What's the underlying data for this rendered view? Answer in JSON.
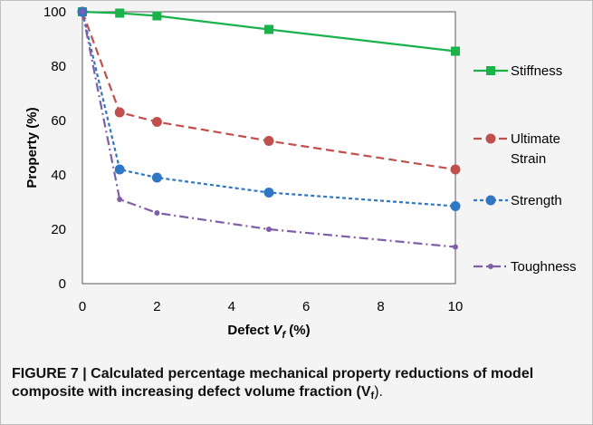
{
  "chart_data": {
    "type": "line",
    "x": [
      0,
      1,
      2,
      5,
      10
    ],
    "xticks": [
      "0",
      "2",
      "4",
      "6",
      "8",
      "10"
    ],
    "yticks": [
      "0",
      "20",
      "40",
      "60",
      "80",
      "100"
    ],
    "ylim": [
      0,
      100
    ],
    "xlabel": "Defect ",
    "xlabel_var": "V",
    "xlabel_sub": "f",
    "xlabel_unit": " (%)",
    "ylabel": "Property (%)",
    "series": [
      {
        "name": "Stiffness",
        "values": [
          100,
          99.5,
          98.5,
          93.5,
          85.5
        ],
        "color": "#19b24b",
        "marker": "square",
        "dash": "solid"
      },
      {
        "name": "Ultimate Strain",
        "values": [
          100,
          63,
          59.5,
          52.5,
          42
        ],
        "color": "#c0504d",
        "marker": "circle",
        "dash": "dashed"
      },
      {
        "name": "Strength",
        "values": [
          100,
          42,
          39,
          33.5,
          28.5
        ],
        "color": "#2f77c4",
        "marker": "circle",
        "dash": "dotted"
      },
      {
        "name": "Toughness",
        "values": [
          100,
          31,
          26,
          20,
          13.5
        ],
        "color": "#7f5ea8",
        "marker": "small-circle",
        "dash": "dashdot"
      }
    ],
    "legend_placement": "right"
  },
  "caption": {
    "bold": "FIGURE 7 | Calculated percentage mechanical property reductions of model composite with increasing defect volume fraction (V",
    "sub": "f",
    "tail": ")."
  }
}
